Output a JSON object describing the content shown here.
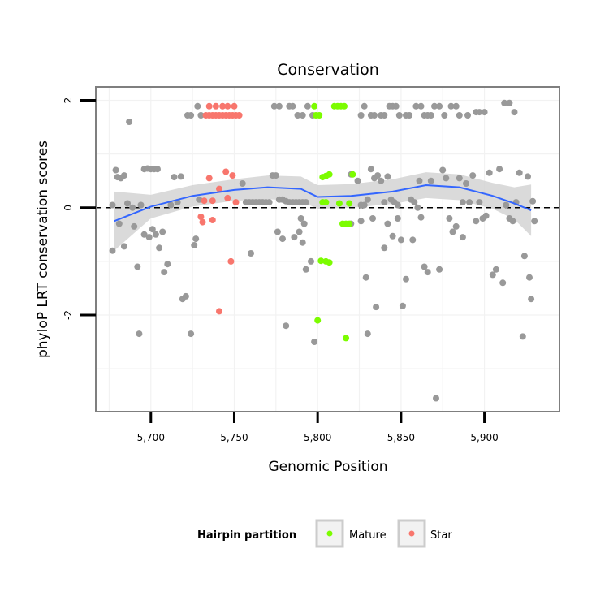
{
  "chart_data": {
    "type": "scatter",
    "title": "Conservation",
    "xlabel": "Genomic Position",
    "ylabel": "phyloP LRT conservation scores",
    "xlim": [
      5667,
      5945
    ],
    "ylim": [
      -3.8,
      2.25
    ],
    "x_ticks": [
      5700,
      5750,
      5800,
      5850,
      5900
    ],
    "x_tick_labels": [
      "5,700",
      "5,750",
      "5,800",
      "5,850",
      "5,900"
    ],
    "y_ticks": [
      -2,
      0,
      2
    ],
    "y_tick_labels": [
      "-2",
      "0",
      "2"
    ],
    "reference_line_y": 0,
    "grid": true,
    "legend": {
      "title": "Hairpin partition",
      "position": "bottom",
      "entries": [
        {
          "label": "Mature",
          "color": "#7cfc00"
        },
        {
          "label": "Star",
          "color": "#f8766d"
        }
      ]
    },
    "colors": {
      "other": "#999999",
      "mature": "#7cfc00",
      "star": "#f8766d",
      "smooth_line": "#3366ff",
      "smooth_band": "#d3d3d3"
    },
    "smooth": {
      "x": [
        5678,
        5700,
        5725,
        5750,
        5770,
        5790,
        5800,
        5820,
        5845,
        5865,
        5885,
        5905,
        5918,
        5928
      ],
      "y": [
        -0.25,
        0.02,
        0.22,
        0.33,
        0.38,
        0.35,
        0.2,
        0.22,
        0.3,
        0.42,
        0.38,
        0.22,
        0.08,
        -0.05
      ],
      "band_halfwidth": [
        0.55,
        0.22,
        0.2,
        0.2,
        0.22,
        0.23,
        0.22,
        0.22,
        0.23,
        0.24,
        0.24,
        0.24,
        0.3,
        0.48
      ]
    },
    "series": [
      {
        "name": "Mature",
        "points": [
          [
            5798,
            1.89
          ],
          [
            5799,
            1.72
          ],
          [
            5801,
            1.72
          ],
          [
            5810,
            1.89
          ],
          [
            5812,
            1.89
          ],
          [
            5814,
            1.89
          ],
          [
            5816,
            1.89
          ],
          [
            5803,
            0.57
          ],
          [
            5805,
            0.59
          ],
          [
            5807,
            0.62
          ],
          [
            5821,
            0.62
          ],
          [
            5803,
            0.1
          ],
          [
            5805,
            0.1
          ],
          [
            5813,
            0.08
          ],
          [
            5819,
            0.08
          ],
          [
            5815,
            -0.3
          ],
          [
            5817,
            -0.3
          ],
          [
            5819,
            -0.3
          ],
          [
            5802,
            -0.99
          ],
          [
            5805,
            -1.0
          ],
          [
            5807,
            -1.02
          ],
          [
            5800,
            -2.1
          ],
          [
            5817,
            -2.43
          ]
        ]
      },
      {
        "name": "Star",
        "points": [
          [
            5735,
            1.89
          ],
          [
            5739,
            1.89
          ],
          [
            5743,
            1.89
          ],
          [
            5746,
            1.89
          ],
          [
            5750,
            1.89
          ],
          [
            5733,
            1.72
          ],
          [
            5735,
            1.72
          ],
          [
            5737,
            1.72
          ],
          [
            5739,
            1.72
          ],
          [
            5741,
            1.72
          ],
          [
            5743,
            1.72
          ],
          [
            5745,
            1.72
          ],
          [
            5747,
            1.72
          ],
          [
            5749,
            1.72
          ],
          [
            5751,
            1.72
          ],
          [
            5753,
            1.72
          ],
          [
            5735,
            0.55
          ],
          [
            5745,
            0.67
          ],
          [
            5749,
            0.6
          ],
          [
            5741,
            0.35
          ],
          [
            5732,
            0.13
          ],
          [
            5737,
            0.13
          ],
          [
            5746,
            0.18
          ],
          [
            5751,
            0.1
          ],
          [
            5730,
            -0.17
          ],
          [
            5731,
            -0.27
          ],
          [
            5737,
            -0.23
          ],
          [
            5748,
            -1.0
          ],
          [
            5741,
            -1.93
          ]
        ]
      },
      {
        "name": "",
        "points": [
          [
            5677,
            0.05
          ],
          [
            5679,
            0.7
          ],
          [
            5680,
            0.57
          ],
          [
            5682,
            0.55
          ],
          [
            5684,
            0.6
          ],
          [
            5686,
            0.08
          ],
          [
            5687,
            1.6
          ],
          [
            5689,
            0.0
          ],
          [
            5690,
            -0.35
          ],
          [
            5692,
            -1.1
          ],
          [
            5694,
            0.05
          ],
          [
            5693,
            -2.35
          ],
          [
            5696,
            0.72
          ],
          [
            5698,
            0.73
          ],
          [
            5700,
            0.72
          ],
          [
            5702,
            0.72
          ],
          [
            5704,
            0.72
          ],
          [
            5696,
            -0.5
          ],
          [
            5699,
            -0.55
          ],
          [
            5701,
            -0.4
          ],
          [
            5703,
            -0.5
          ],
          [
            5705,
            -0.75
          ],
          [
            5707,
            -0.45
          ],
          [
            5708,
            -1.2
          ],
          [
            5710,
            -1.05
          ],
          [
            5712,
            0.05
          ],
          [
            5714,
            0.57
          ],
          [
            5716,
            0.1
          ],
          [
            5718,
            0.58
          ],
          [
            5719,
            -1.7
          ],
          [
            5721,
            -1.65
          ],
          [
            5722,
            1.72
          ],
          [
            5724,
            1.72
          ],
          [
            5724,
            -2.35
          ],
          [
            5726,
            -0.7
          ],
          [
            5727,
            -0.58
          ],
          [
            5728,
            1.89
          ],
          [
            5729,
            0.15
          ],
          [
            5730,
            1.72
          ],
          [
            5677,
            -0.8
          ],
          [
            5684,
            -0.72
          ],
          [
            5681,
            -0.3
          ],
          [
            5755,
            0.45
          ],
          [
            5757,
            0.1
          ],
          [
            5759,
            0.1
          ],
          [
            5761,
            0.1
          ],
          [
            5763,
            0.1
          ],
          [
            5765,
            0.1
          ],
          [
            5767,
            0.1
          ],
          [
            5769,
            0.1
          ],
          [
            5771,
            0.1
          ],
          [
            5773,
            0.6
          ],
          [
            5775,
            0.6
          ],
          [
            5777,
            0.15
          ],
          [
            5779,
            0.15
          ],
          [
            5781,
            0.12
          ],
          [
            5783,
            0.1
          ],
          [
            5785,
            0.1
          ],
          [
            5787,
            0.1
          ],
          [
            5789,
            0.1
          ],
          [
            5791,
            0.1
          ],
          [
            5793,
            0.1
          ],
          [
            5774,
            1.89
          ],
          [
            5777,
            1.89
          ],
          [
            5783,
            1.89
          ],
          [
            5785,
            1.89
          ],
          [
            5788,
            1.72
          ],
          [
            5791,
            1.72
          ],
          [
            5794,
            1.89
          ],
          [
            5797,
            1.72
          ],
          [
            5790,
            -0.2
          ],
          [
            5792,
            -0.3
          ],
          [
            5789,
            -0.45
          ],
          [
            5791,
            -0.65
          ],
          [
            5776,
            -0.45
          ],
          [
            5779,
            -0.58
          ],
          [
            5786,
            -0.55
          ],
          [
            5796,
            -1.0
          ],
          [
            5793,
            -1.15
          ],
          [
            5781,
            -2.2
          ],
          [
            5798,
            -2.5
          ],
          [
            5760,
            -0.85
          ],
          [
            5824,
            0.5
          ],
          [
            5826,
            0.05
          ],
          [
            5828,
            0.05
          ],
          [
            5830,
            0.15
          ],
          [
            5832,
            0.72
          ],
          [
            5834,
            0.55
          ],
          [
            5836,
            0.6
          ],
          [
            5838,
            0.5
          ],
          [
            5840,
            0.1
          ],
          [
            5842,
            0.58
          ],
          [
            5844,
            0.15
          ],
          [
            5846,
            0.1
          ],
          [
            5848,
            0.05
          ],
          [
            5826,
            1.72
          ],
          [
            5828,
            1.89
          ],
          [
            5832,
            1.72
          ],
          [
            5834,
            1.72
          ],
          [
            5838,
            1.72
          ],
          [
            5840,
            1.72
          ],
          [
            5843,
            1.89
          ],
          [
            5845,
            1.89
          ],
          [
            5847,
            1.89
          ],
          [
            5849,
            1.72
          ],
          [
            5853,
            1.72
          ],
          [
            5855,
            1.72
          ],
          [
            5859,
            1.89
          ],
          [
            5862,
            1.89
          ],
          [
            5864,
            1.72
          ],
          [
            5866,
            1.72
          ],
          [
            5868,
            1.72
          ],
          [
            5870,
            1.89
          ],
          [
            5873,
            1.89
          ],
          [
            5876,
            1.72
          ],
          [
            5880,
            1.89
          ],
          [
            5883,
            1.89
          ],
          [
            5885,
            1.72
          ],
          [
            5890,
            1.72
          ],
          [
            5895,
            1.78
          ],
          [
            5897,
            1.78
          ],
          [
            5900,
            1.78
          ],
          [
            5912,
            1.95
          ],
          [
            5915,
            1.95
          ],
          [
            5918,
            1.78
          ],
          [
            5826,
            -0.25
          ],
          [
            5829,
            -1.3
          ],
          [
            5833,
            -0.2
          ],
          [
            5835,
            -1.85
          ],
          [
            5842,
            -0.3
          ],
          [
            5845,
            -0.53
          ],
          [
            5848,
            -0.2
          ],
          [
            5851,
            -1.83
          ],
          [
            5853,
            -1.33
          ],
          [
            5856,
            0.15
          ],
          [
            5858,
            0.1
          ],
          [
            5860,
            0.0
          ],
          [
            5862,
            -0.18
          ],
          [
            5864,
            -1.1
          ],
          [
            5866,
            -1.2
          ],
          [
            5868,
            0.5
          ],
          [
            5871,
            -3.55
          ],
          [
            5873,
            -1.15
          ],
          [
            5875,
            0.7
          ],
          [
            5877,
            0.55
          ],
          [
            5879,
            -0.2
          ],
          [
            5881,
            -0.45
          ],
          [
            5883,
            -0.35
          ],
          [
            5885,
            0.55
          ],
          [
            5887,
            0.1
          ],
          [
            5889,
            0.45
          ],
          [
            5891,
            0.1
          ],
          [
            5893,
            0.6
          ],
          [
            5895,
            -0.25
          ],
          [
            5897,
            0.1
          ],
          [
            5899,
            -0.2
          ],
          [
            5901,
            -0.15
          ],
          [
            5903,
            0.65
          ],
          [
            5905,
            -1.25
          ],
          [
            5907,
            -1.15
          ],
          [
            5909,
            0.72
          ],
          [
            5911,
            -1.4
          ],
          [
            5913,
            0.05
          ],
          [
            5915,
            -0.2
          ],
          [
            5917,
            -0.25
          ],
          [
            5919,
            0.1
          ],
          [
            5921,
            0.65
          ],
          [
            5923,
            -2.4
          ],
          [
            5924,
            -0.9
          ],
          [
            5926,
            0.58
          ],
          [
            5927,
            -1.3
          ],
          [
            5928,
            -1.7
          ],
          [
            5929,
            0.12
          ],
          [
            5930,
            -0.25
          ],
          [
            5840,
            -0.75
          ],
          [
            5850,
            -0.6
          ],
          [
            5887,
            -0.55
          ],
          [
            5820,
            -0.3
          ],
          [
            5830,
            -2.35
          ],
          [
            5857,
            -0.6
          ],
          [
            5861,
            0.5
          ],
          [
            5820,
            0.62
          ]
        ]
      }
    ]
  }
}
